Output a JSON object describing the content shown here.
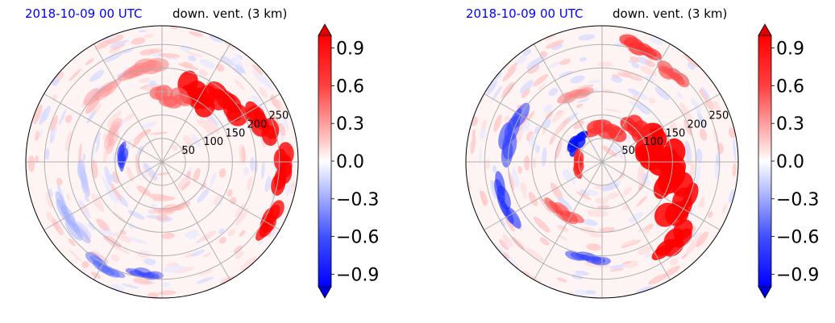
{
  "chart_data": [
    {
      "type": "heatmap",
      "projection": "polar",
      "title_left": "2018-10-09 00 UTC",
      "title_right": "down. vent. (3 km)",
      "radial_ticks": [
        "50",
        "100",
        "150",
        "200",
        "250"
      ],
      "colorbar": {
        "ticks": [
          "0.9",
          "0.6",
          "0.3",
          "0.0",
          "−0.3",
          "−0.6",
          "−0.9"
        ],
        "range": [
          -1.0,
          1.0
        ],
        "extend": "both",
        "colormap": "bwr"
      },
      "grid": true,
      "colors": {
        "positive": "#ff0000",
        "negative": "#0000ff",
        "neutral": "#ffffff"
      }
    },
    {
      "type": "heatmap",
      "projection": "polar",
      "title_left": "2018-10-09 00 UTC",
      "title_right": "down. vent. (3 km)",
      "radial_ticks": [
        "50",
        "100",
        "150",
        "200",
        "250"
      ],
      "colorbar": {
        "ticks": [
          "0.9",
          "0.6",
          "0.3",
          "0.0",
          "−0.3",
          "−0.6",
          "−0.9"
        ],
        "range": [
          -1.0,
          1.0
        ],
        "extend": "both",
        "colormap": "bwr"
      },
      "grid": true,
      "colors": {
        "positive": "#ff0000",
        "negative": "#0000ff",
        "neutral": "#ffffff"
      }
    }
  ]
}
